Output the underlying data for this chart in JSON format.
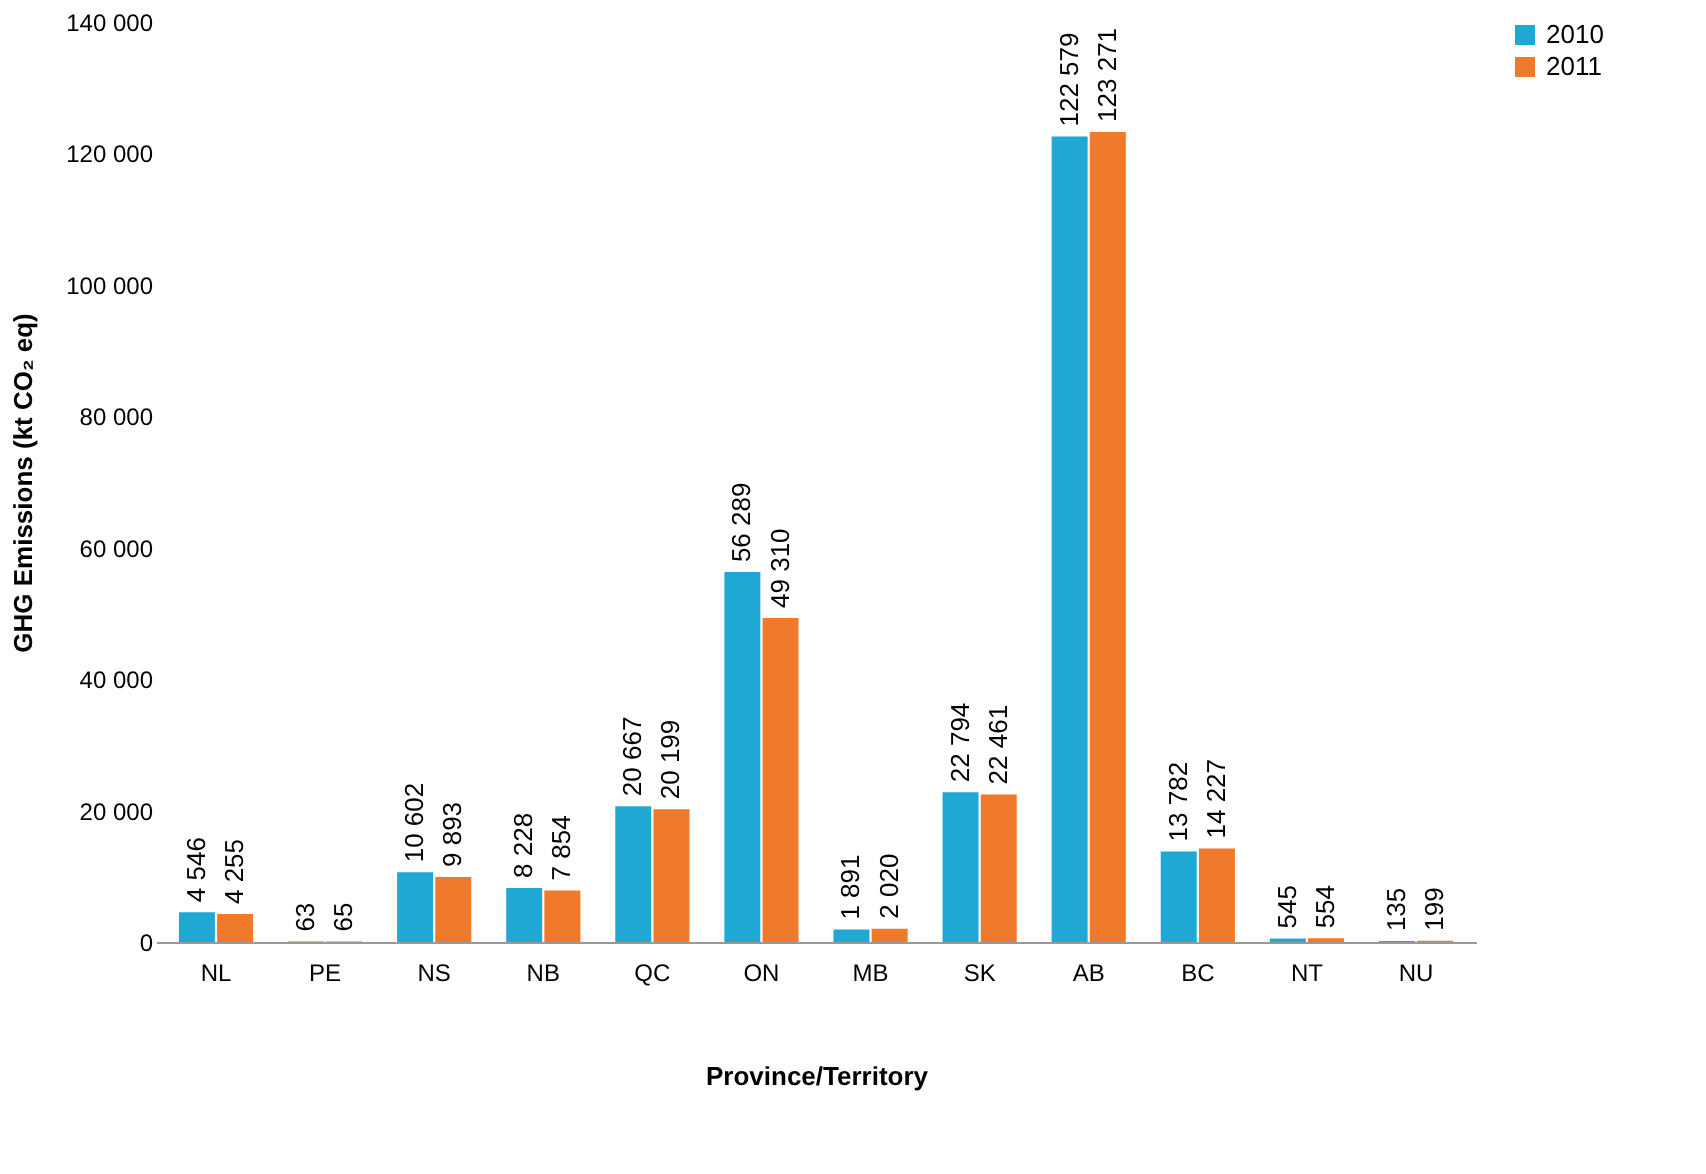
{
  "chart_data": {
    "type": "bar",
    "categories": [
      "NL",
      "PE",
      "NS",
      "NB",
      "QC",
      "ON",
      "MB",
      "SK",
      "AB",
      "BC",
      "NT",
      "NU"
    ],
    "series": [
      {
        "name": "2010",
        "color": "#1fa8d4",
        "values": [
          4546,
          63,
          10602,
          8228,
          20667,
          56289,
          1891,
          22794,
          122579,
          13782,
          545,
          135
        ],
        "value_labels": [
          "4 546",
          "63",
          "10 602",
          "8 228",
          "20 667",
          "56 289",
          "1 891",
          "22 794",
          "122 579",
          "13 782",
          "545",
          "135"
        ]
      },
      {
        "name": "2011",
        "color": "#f07a2c",
        "values": [
          4255,
          65,
          9893,
          7854,
          20199,
          49310,
          2020,
          22461,
          123271,
          14227,
          554,
          199
        ],
        "value_labels": [
          "4 255",
          "65",
          "9 893",
          "7 854",
          "20 199",
          "49 310",
          "2 020",
          "22 461",
          "123 271",
          "14 227",
          "554",
          "199"
        ]
      }
    ],
    "xlabel": "Province/Territory",
    "ylabel": "GHG Emissions (kt CO₂ eq)",
    "ylim": [
      0,
      140000
    ],
    "yticks": [
      0,
      {
        "value": 20000,
        "label": "20 000"
      },
      {
        "value": 40000,
        "label": "40 000"
      },
      {
        "value": 60000,
        "label": "60 000"
      },
      {
        "value": 80000,
        "label": "80 000"
      },
      {
        "value": 100000,
        "label": "100 000"
      },
      {
        "value": 120000,
        "label": "120 000"
      },
      {
        "value": 140000,
        "label": "140 000"
      }
    ],
    "grid": false,
    "legend": "right"
  }
}
